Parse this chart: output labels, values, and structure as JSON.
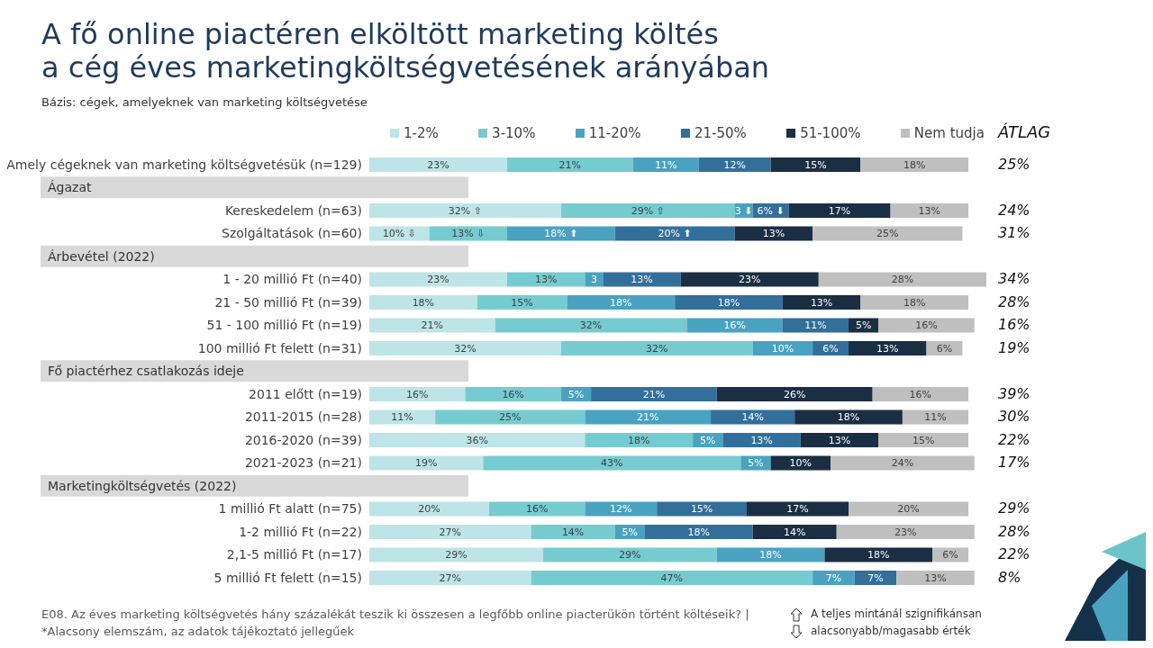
{
  "chart_data": {
    "type": "bar",
    "orientation": "horizontal",
    "stacked": true,
    "legend": "top",
    "title": "A fő online piactéren elköltött marketing költés\na cég éves marketingköltségvetésének arányában",
    "subtitle": "Bázis: cégek, amelyeknek van marketing költségvetése",
    "categories": [
      "Amely cégeknek van marketing költségvetésük (n=129)",
      null,
      "Kereskedelem (n=63)",
      "Szolgáltatások (n=60)",
      null,
      "1 - 20 millió Ft (n=40)",
      "21 - 50 millió Ft (n=39)",
      "51 - 100 millió Ft (n=19)",
      "100 millió Ft felett (n=31)",
      null,
      "2011 előtt (n=19)",
      "2011-2015 (n=28)",
      "2016-2020 (n=39)",
      "2021-2023 (n=21)",
      null,
      "1 millió Ft alatt (n=75)",
      "1-2 millió Ft (n=22)",
      "2,1-5 millió Ft (n=17)",
      "5 millió Ft felett (n=15)"
    ],
    "series": [
      {
        "name": "1-2%",
        "color": "#bde4e7",
        "values": [
          23,
          null,
          32,
          10,
          null,
          23,
          18,
          21,
          32,
          null,
          16,
          11,
          36,
          19,
          null,
          20,
          27,
          29,
          27
        ],
        "value_labels": [
          "23%",
          null,
          "32% ⇧",
          "10% ⇩",
          null,
          "23%",
          "18%",
          "21%",
          "32%",
          null,
          "16%",
          "11%",
          "36%",
          "19%",
          null,
          "20%",
          "27%",
          "29%",
          "27%"
        ]
      },
      {
        "name": "3-10%",
        "color": "#76cbd0",
        "values": [
          21,
          null,
          29,
          13,
          null,
          13,
          15,
          32,
          32,
          null,
          16,
          25,
          18,
          43,
          null,
          16,
          14,
          29,
          47
        ],
        "value_labels": [
          "21%",
          null,
          "29% ⇧",
          "13% ⇩",
          null,
          "13%",
          "15%",
          "32%",
          "32%",
          null,
          "16%",
          "25%",
          "18%",
          "43%",
          null,
          "16%",
          "14%",
          "29%",
          "47%"
        ]
      },
      {
        "name": "11-20%",
        "color": "#4aa2c1",
        "values": [
          11,
          null,
          3,
          18,
          null,
          3,
          18,
          16,
          10,
          null,
          5,
          21,
          5,
          5,
          null,
          12,
          5,
          18,
          7
        ],
        "value_labels": [
          "11%",
          null,
          "3 ⬇",
          "18% ⬆",
          null,
          "3",
          "18%",
          "16%",
          "10%",
          null,
          "5%",
          "21%",
          "5%",
          "5%",
          null,
          "12%",
          "5%",
          "18%",
          "7%"
        ]
      },
      {
        "name": "21-50%",
        "color": "#336f9b",
        "values": [
          12,
          null,
          6,
          20,
          null,
          13,
          18,
          11,
          6,
          null,
          21,
          14,
          13,
          null,
          null,
          15,
          18,
          null,
          7
        ],
        "value_labels": [
          "12%",
          null,
          "6% ⬇",
          "20% ⬆",
          null,
          "13%",
          "18%",
          "11%",
          "6%",
          null,
          "21%",
          "14%",
          "13%",
          null,
          null,
          "15%",
          "18%",
          null,
          "7%"
        ]
      },
      {
        "name": "51-100%",
        "color": "#1a2e44",
        "values": [
          15,
          null,
          17,
          13,
          null,
          23,
          13,
          5,
          13,
          null,
          26,
          18,
          13,
          10,
          null,
          17,
          14,
          18,
          null
        ],
        "value_labels": [
          "15%",
          null,
          "17%",
          "13%",
          null,
          "23%",
          "13%",
          "5%",
          "13%",
          null,
          "26%",
          "18%",
          "13%",
          "10%",
          null,
          "17%",
          "14%",
          "18%",
          null
        ]
      },
      {
        "name": "Nem tudja",
        "color": "#bfbfbf",
        "values": [
          18,
          null,
          13,
          25,
          null,
          28,
          18,
          16,
          6,
          null,
          16,
          11,
          15,
          24,
          null,
          20,
          23,
          6,
          13
        ],
        "value_labels": [
          "18%",
          null,
          "13%",
          "25%",
          null,
          "28%",
          "18%",
          "16%",
          "6%",
          null,
          "16%",
          "11%",
          "15%",
          "24%",
          null,
          "20%",
          "23%",
          "6%",
          "13%"
        ]
      }
    ],
    "annotations": [
      "ÁTLAG",
      "E08. Az éves marketing költségvetés hány százalékát teszik ki összesen a legfőbb online piacterükön történt költéseik? |",
      "*Alacsony elemszám, az adatok tájékoztató jellegűek",
      "A teljes mintánál szignifikánsan alacsonyabb/magasabb érték",
      "Ágazat",
      "Árbevétel (2022)",
      "Fő piactérhez csatlakozás ideje",
      "Marketingköltségvetés (2022)",
      "25%",
      "24%",
      "31%",
      "34%",
      "28%",
      "16%",
      "19%",
      "39%",
      "30%",
      "22%",
      "17%",
      "29%",
      "28%",
      "22%",
      "8%"
    ]
  }
}
